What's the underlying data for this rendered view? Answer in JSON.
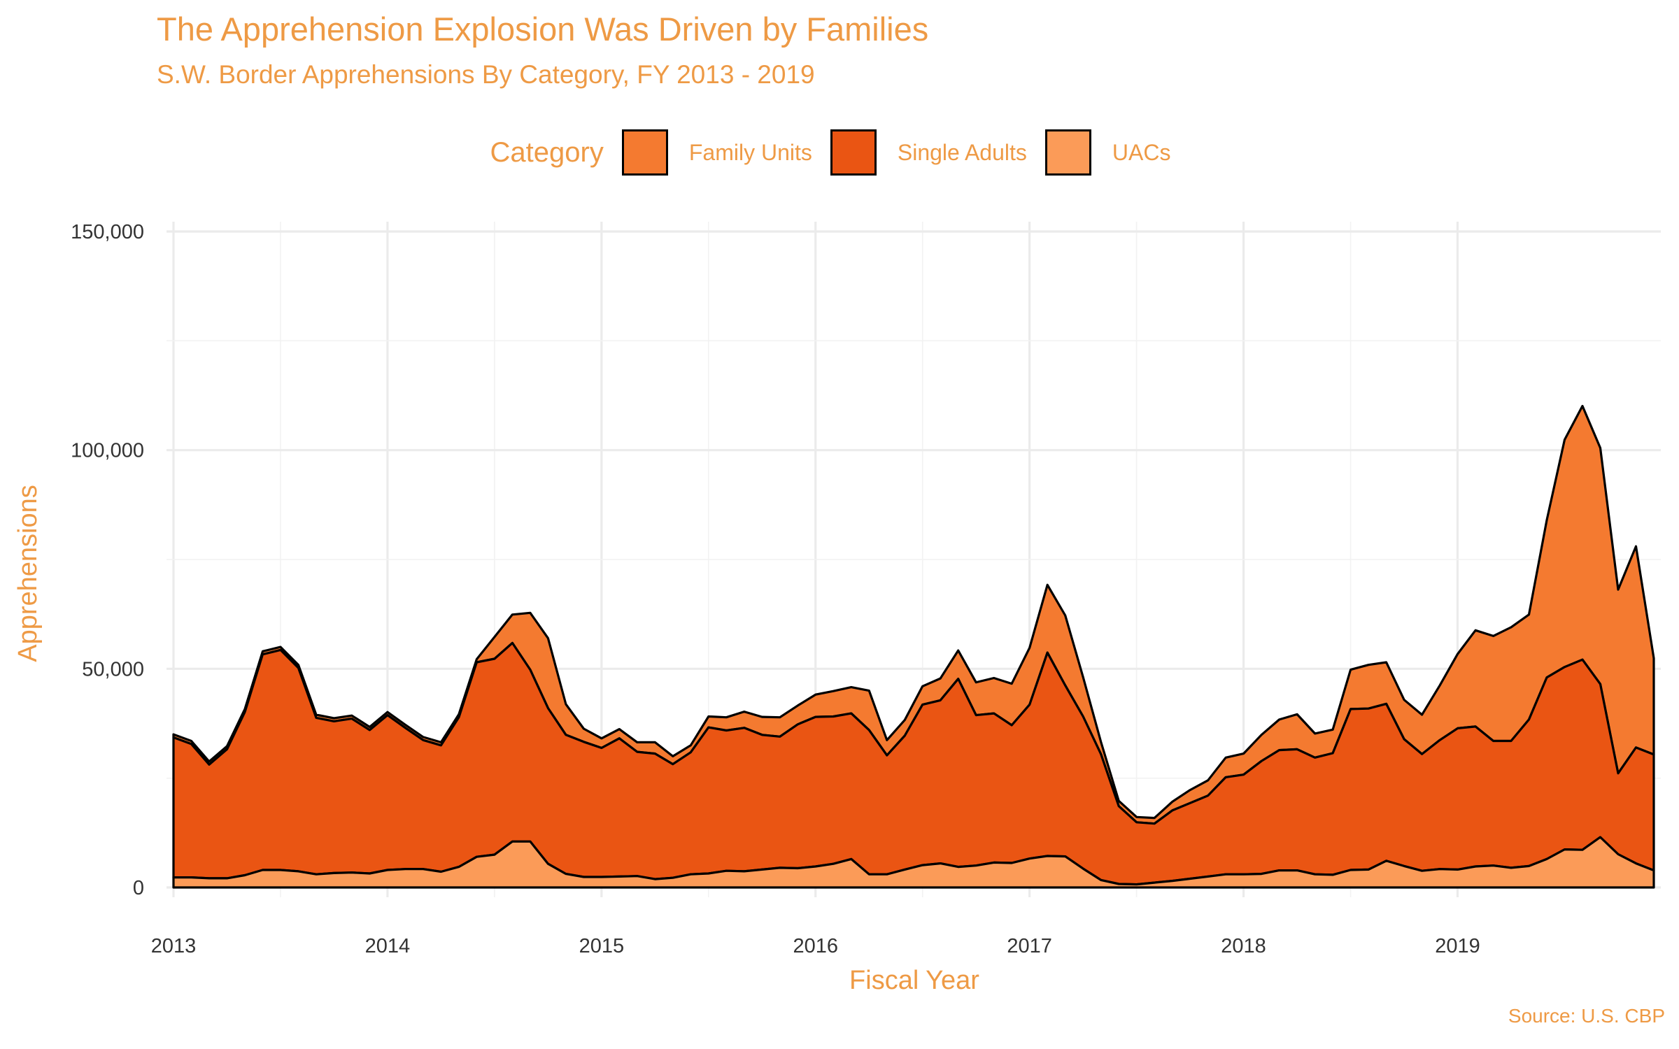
{
  "chart_data": {
    "type": "area",
    "stacked": true,
    "title": "The Apprehension Explosion Was Driven by Families",
    "subtitle": "S.W. Border Apprehensions By Category, FY 2013 - 2019",
    "xlabel": "Fiscal Year",
    "ylabel": "Apprehensions",
    "source": "Source: U.S. CBP",
    "legend_title": "Category",
    "legend_position": "top",
    "grid": true,
    "xlim": [
      2013,
      2019.917
    ],
    "ylim": [
      0,
      150000
    ],
    "x_ticks": [
      2013,
      2014,
      2015,
      2016,
      2017,
      2018,
      2019
    ],
    "x_tick_labels": [
      "2013",
      "2014",
      "2015",
      "2016",
      "2017",
      "2018",
      "2019"
    ],
    "y_ticks": [
      0,
      50000,
      100000,
      150000
    ],
    "y_tick_labels": [
      "0",
      "50,000",
      "100,000",
      "150,000"
    ],
    "stack_order_bottom_to_top": [
      "UACs",
      "Single Adults",
      "Family Units"
    ],
    "series": [
      {
        "name": "Family Units",
        "color": "#f47a30",
        "values": [
          700,
          700,
          700,
          700,
          700,
          700,
          700,
          700,
          700,
          700,
          700,
          700,
          700,
          700,
          700,
          700,
          700,
          700,
          5000,
          6500,
          13000,
          16000,
          7000,
          3000,
          2200,
          2100,
          2200,
          2600,
          1800,
          1600,
          2500,
          3000,
          3700,
          4100,
          4400,
          4300,
          5100,
          5800,
          6000,
          9000,
          3500,
          3600,
          4200,
          5000,
          6500,
          7500,
          8100,
          9500,
          13000,
          15500,
          16000,
          9000,
          2800,
          1200,
          1200,
          1300,
          2000,
          3000,
          3500,
          4500,
          4800,
          6000,
          7000,
          8000,
          5500,
          5400,
          9000,
          10000,
          9500,
          9000,
          9000,
          12500,
          17000,
          22000,
          24000,
          26000,
          24000,
          36000,
          52000,
          58000,
          54000,
          42000,
          46000,
          22000
        ]
      },
      {
        "name": "Single Adults",
        "color": "#ea5513",
        "values": [
          32000,
          30500,
          26000,
          29500,
          37300,
          49300,
          50300,
          46500,
          35800,
          34700,
          35200,
          32800,
          35400,
          32300,
          29500,
          28900,
          34200,
          44500,
          44800,
          45400,
          39300,
          35600,
          31800,
          30900,
          29500,
          31600,
          28400,
          28700,
          26000,
          27900,
          33400,
          32100,
          32800,
          30800,
          30000,
          32900,
          34200,
          33700,
          33300,
          33000,
          27200,
          30600,
          36700,
          37300,
          43000,
          34400,
          34100,
          31500,
          35200,
          46500,
          39100,
          34800,
          28800,
          17800,
          14200,
          13500,
          16100,
          17300,
          18500,
          22200,
          22800,
          25800,
          27500,
          27700,
          26700,
          27800,
          36800,
          36800,
          35900,
          29000,
          26700,
          29500,
          32300,
          32000,
          28500,
          29000,
          33500,
          41500,
          41700,
          43500,
          35000,
          18500,
          26500,
          26500
        ]
      },
      {
        "name": "UACs",
        "color": "#fb9b58",
        "values": [
          2300,
          2300,
          2100,
          2100,
          2800,
          4000,
          4000,
          3700,
          3000,
          3300,
          3400,
          3200,
          4000,
          4200,
          4200,
          3600,
          4700,
          7000,
          7500,
          10500,
          10500,
          5400,
          3100,
          2400,
          2400,
          2500,
          2600,
          1900,
          2200,
          3000,
          3200,
          3800,
          3700,
          4100,
          4500,
          4400,
          4800,
          5400,
          6500,
          3000,
          3000,
          4100,
          5100,
          5500,
          4700,
          5000,
          5700,
          5600,
          6600,
          7200,
          7100,
          4300,
          1700,
          800,
          700,
          1100,
          1500,
          2000,
          2500,
          3000,
          3000,
          3100,
          3900,
          3900,
          3000,
          2900,
          4000,
          4100,
          6100,
          4900,
          3800,
          4200,
          4100,
          4800,
          5000,
          4500,
          4900,
          6500,
          8700,
          8600,
          11500,
          7600,
          5500,
          3900
        ]
      }
    ]
  }
}
